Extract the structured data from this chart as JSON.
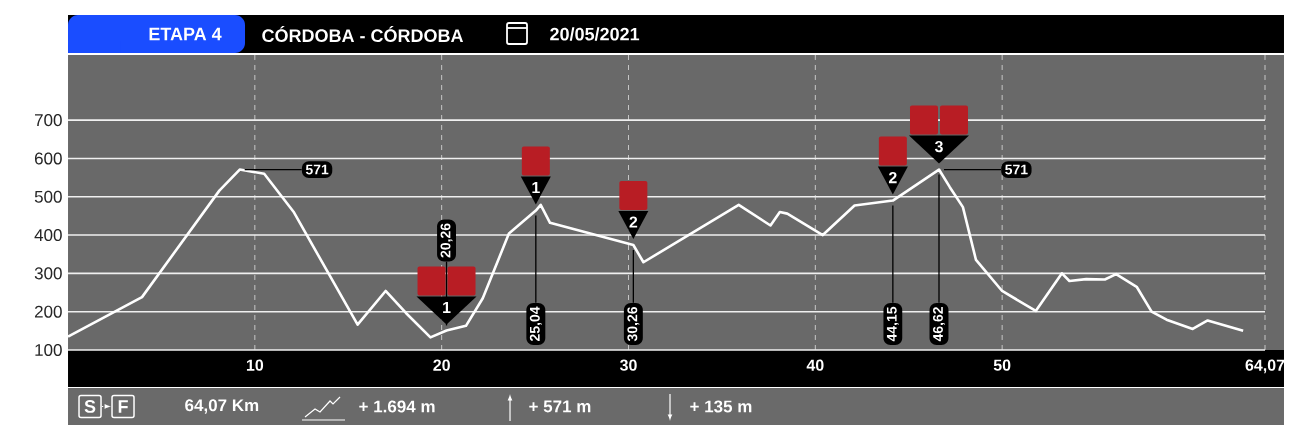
{
  "chart_data": {
    "type": "line",
    "title": "ETAPA 4",
    "subtitle": "CÓRDOBA - CÓRDOBA",
    "x": [
      0,
      3.96,
      8.1,
      9.19,
      10.5,
      12.07,
      15.5,
      17.0,
      18.1,
      19.4,
      20.26,
      21.3,
      22.2,
      23.6,
      25.04,
      25.3,
      25.8,
      30.26,
      30.8,
      35.9,
      37.6,
      38.1,
      38.5,
      40.4,
      42.1,
      44.15,
      46.62,
      47.2,
      47.9,
      48.6,
      50.0,
      51.8,
      53.2,
      53.6,
      54.5,
      55.5,
      56.1,
      57.2,
      58.0,
      58.8,
      60.2,
      61.0,
      62.9
    ],
    "values": [
      135,
      238,
      516,
      571,
      560,
      461,
      166,
      254,
      196,
      133,
      151,
      163,
      235,
      404,
      464,
      479,
      432,
      374,
      329,
      479,
      425,
      460,
      456,
      400,
      477,
      490,
      571,
      525,
      473,
      335,
      254,
      202,
      300,
      280,
      285,
      284,
      298,
      265,
      200,
      179,
      155,
      177,
      150
    ],
    "color": "#ffffff",
    "xlim": [
      0,
      64.07
    ],
    "xticks": [
      10,
      20,
      30,
      40,
      50,
      {
        "value": 64.07,
        "label": "64,07"
      }
    ],
    "ylim": [
      100,
      870
    ],
    "yticks": [
      100,
      200,
      300,
      400,
      500,
      600,
      700
    ],
    "grid": true,
    "annotations": [
      "20/05/2021",
      "S",
      "F",
      "64,07 Km",
      "+ 1.694 m",
      "+ 571 m",
      "+ 135 m",
      {
        "text": "571",
        "x": 9.19,
        "y": 571
      },
      {
        "text": "571",
        "x": 46.62,
        "y": 571
      },
      {
        "text": "20,26",
        "x": 20.26,
        "y": 151
      },
      {
        "text": "25,04",
        "x": 25.04,
        "y": 464
      },
      {
        "text": "30,26",
        "x": 30.26,
        "y": 374
      },
      {
        "text": "44,15",
        "x": 44.15,
        "y": 490
      },
      {
        "text": "46,62",
        "x": 46.62,
        "y": 571
      },
      {
        "text": "1",
        "x": 20.26,
        "y": 151
      },
      {
        "text": "1",
        "x": 25.04,
        "y": 464
      },
      {
        "text": "2",
        "x": 30.26,
        "y": 374
      },
      {
        "text": "2",
        "x": 44.15,
        "y": 490
      },
      {
        "text": "3",
        "x": 46.62,
        "y": 571
      }
    ]
  }
}
